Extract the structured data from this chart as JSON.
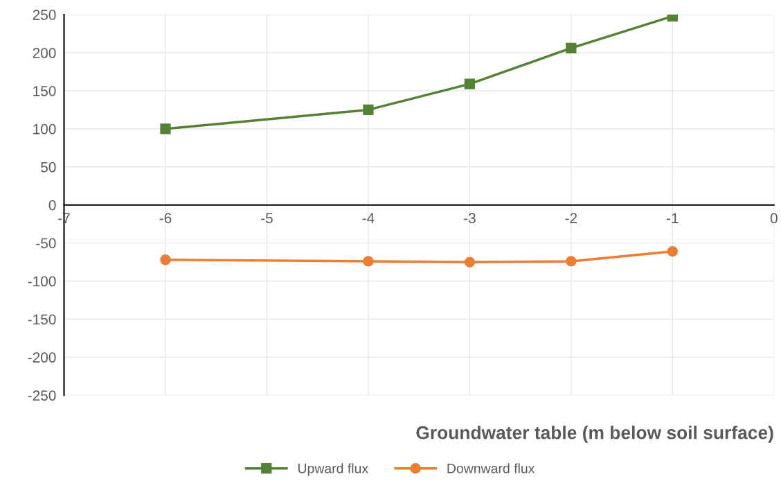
{
  "chart_data": {
    "type": "line",
    "xlabel": "Groundwater table (m below soil surface)",
    "x": [
      -6,
      -4,
      -3,
      -2,
      -1
    ],
    "series": [
      {
        "name": "Upward flux",
        "color": "#548235",
        "marker": "square",
        "values": [
          100,
          125,
          159,
          206,
          248
        ]
      },
      {
        "name": "Downward flux",
        "color": "#ed7d31",
        "marker": "circle",
        "values": [
          -72,
          -74,
          -75,
          -74,
          -61
        ]
      }
    ],
    "xlim": [
      -7,
      0
    ],
    "xticks": [
      -7,
      -6,
      -5,
      -4,
      -3,
      -2,
      -1,
      0
    ],
    "ylim": [
      -250,
      250
    ],
    "yticks": [
      -250,
      -200,
      -150,
      -100,
      -50,
      0,
      50,
      100,
      150,
      200,
      250
    ],
    "grid": true,
    "legend": "bottom",
    "line_style": "solid"
  }
}
